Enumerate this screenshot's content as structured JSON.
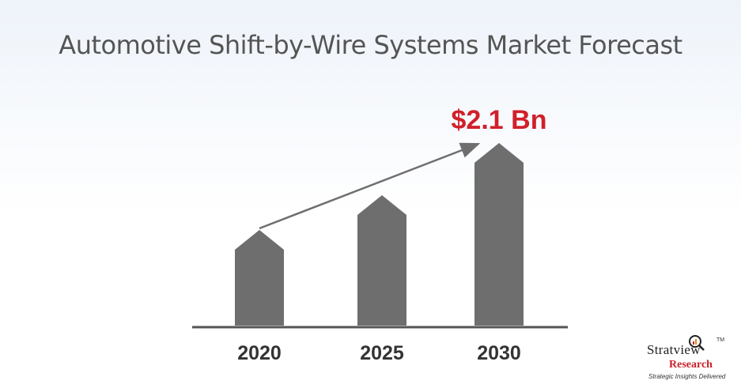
{
  "chart_data": {
    "type": "bar",
    "title": "Automotive Shift-by-Wire Systems Market Forecast",
    "categories": [
      "2020",
      "2025",
      "2030"
    ],
    "values": [
      1.1,
      1.5,
      2.1
    ],
    "unit": "Bn",
    "annotation": "$2.1 Bn",
    "ylim": [
      0,
      2.1
    ],
    "colors": {
      "bar": "#6e6e6e",
      "axis": "#555555",
      "arrow": "#6e6e6e",
      "annotation": "#d1202a"
    }
  },
  "logo": {
    "name": "Stratview",
    "sub": "Research",
    "tagline": "Strategic Insights Delivered",
    "tm": "TM"
  }
}
